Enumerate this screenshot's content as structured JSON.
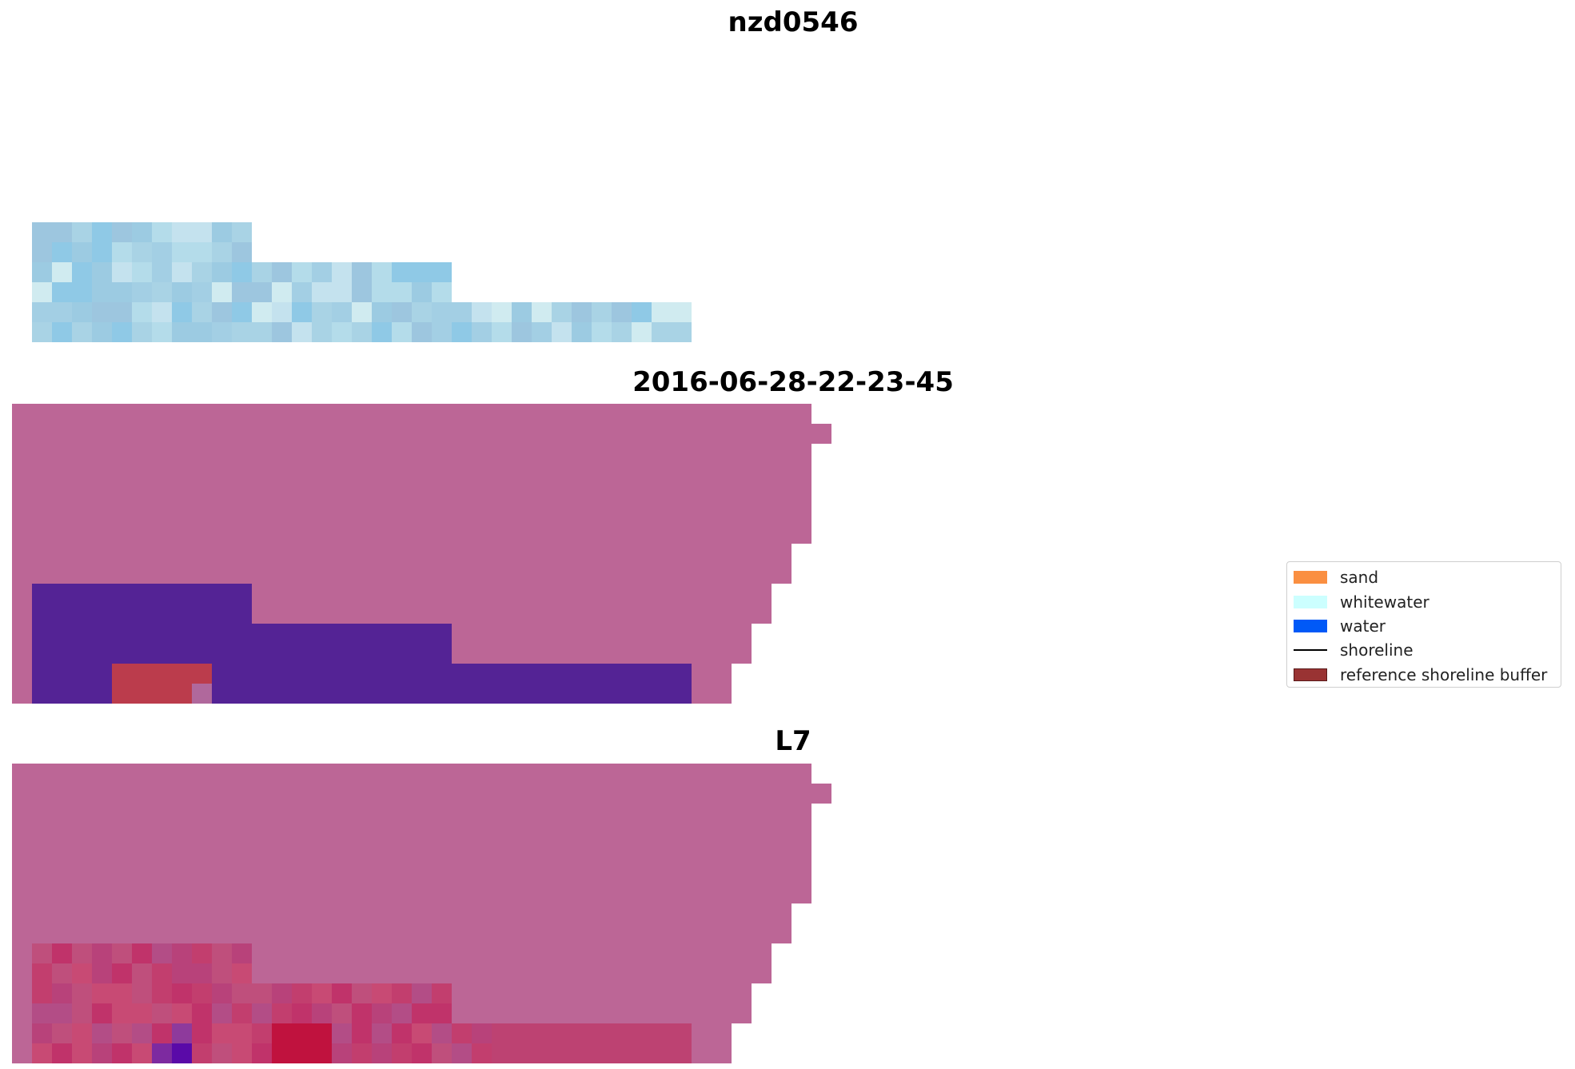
{
  "titles": {
    "site": "nzd0546",
    "date": "2016-06-28-22-23-45",
    "satellite": "L7"
  },
  "legend": {
    "items": [
      {
        "label": "sand",
        "kind": "patch",
        "color": "#fa8f41"
      },
      {
        "label": "whitewater",
        "kind": "patch",
        "color": "#ccffff"
      },
      {
        "label": "water",
        "kind": "patch",
        "color": "#0059f7"
      },
      {
        "label": "shoreline",
        "kind": "line",
        "color": "#000000"
      },
      {
        "label": "reference shoreline buffer",
        "kind": "patch",
        "color": "#993333"
      }
    ]
  },
  "colors": {
    "land_mask": "#bc6696",
    "water_class": "#542395",
    "buffer_class": "#bb3c4c",
    "rgb_tile_palette": [
      "#a9d3e5",
      "#9ccbe2",
      "#b4dcea",
      "#8fc9e6",
      "#c4e2ee",
      "#a3cfe4",
      "#d0ebf0",
      "#9dc6df"
    ],
    "index_tile_palette": [
      "#c23e6e",
      "#b8427a",
      "#c84a74",
      "#b34d86",
      "#c0336a",
      "#bf4f7c"
    ]
  }
}
